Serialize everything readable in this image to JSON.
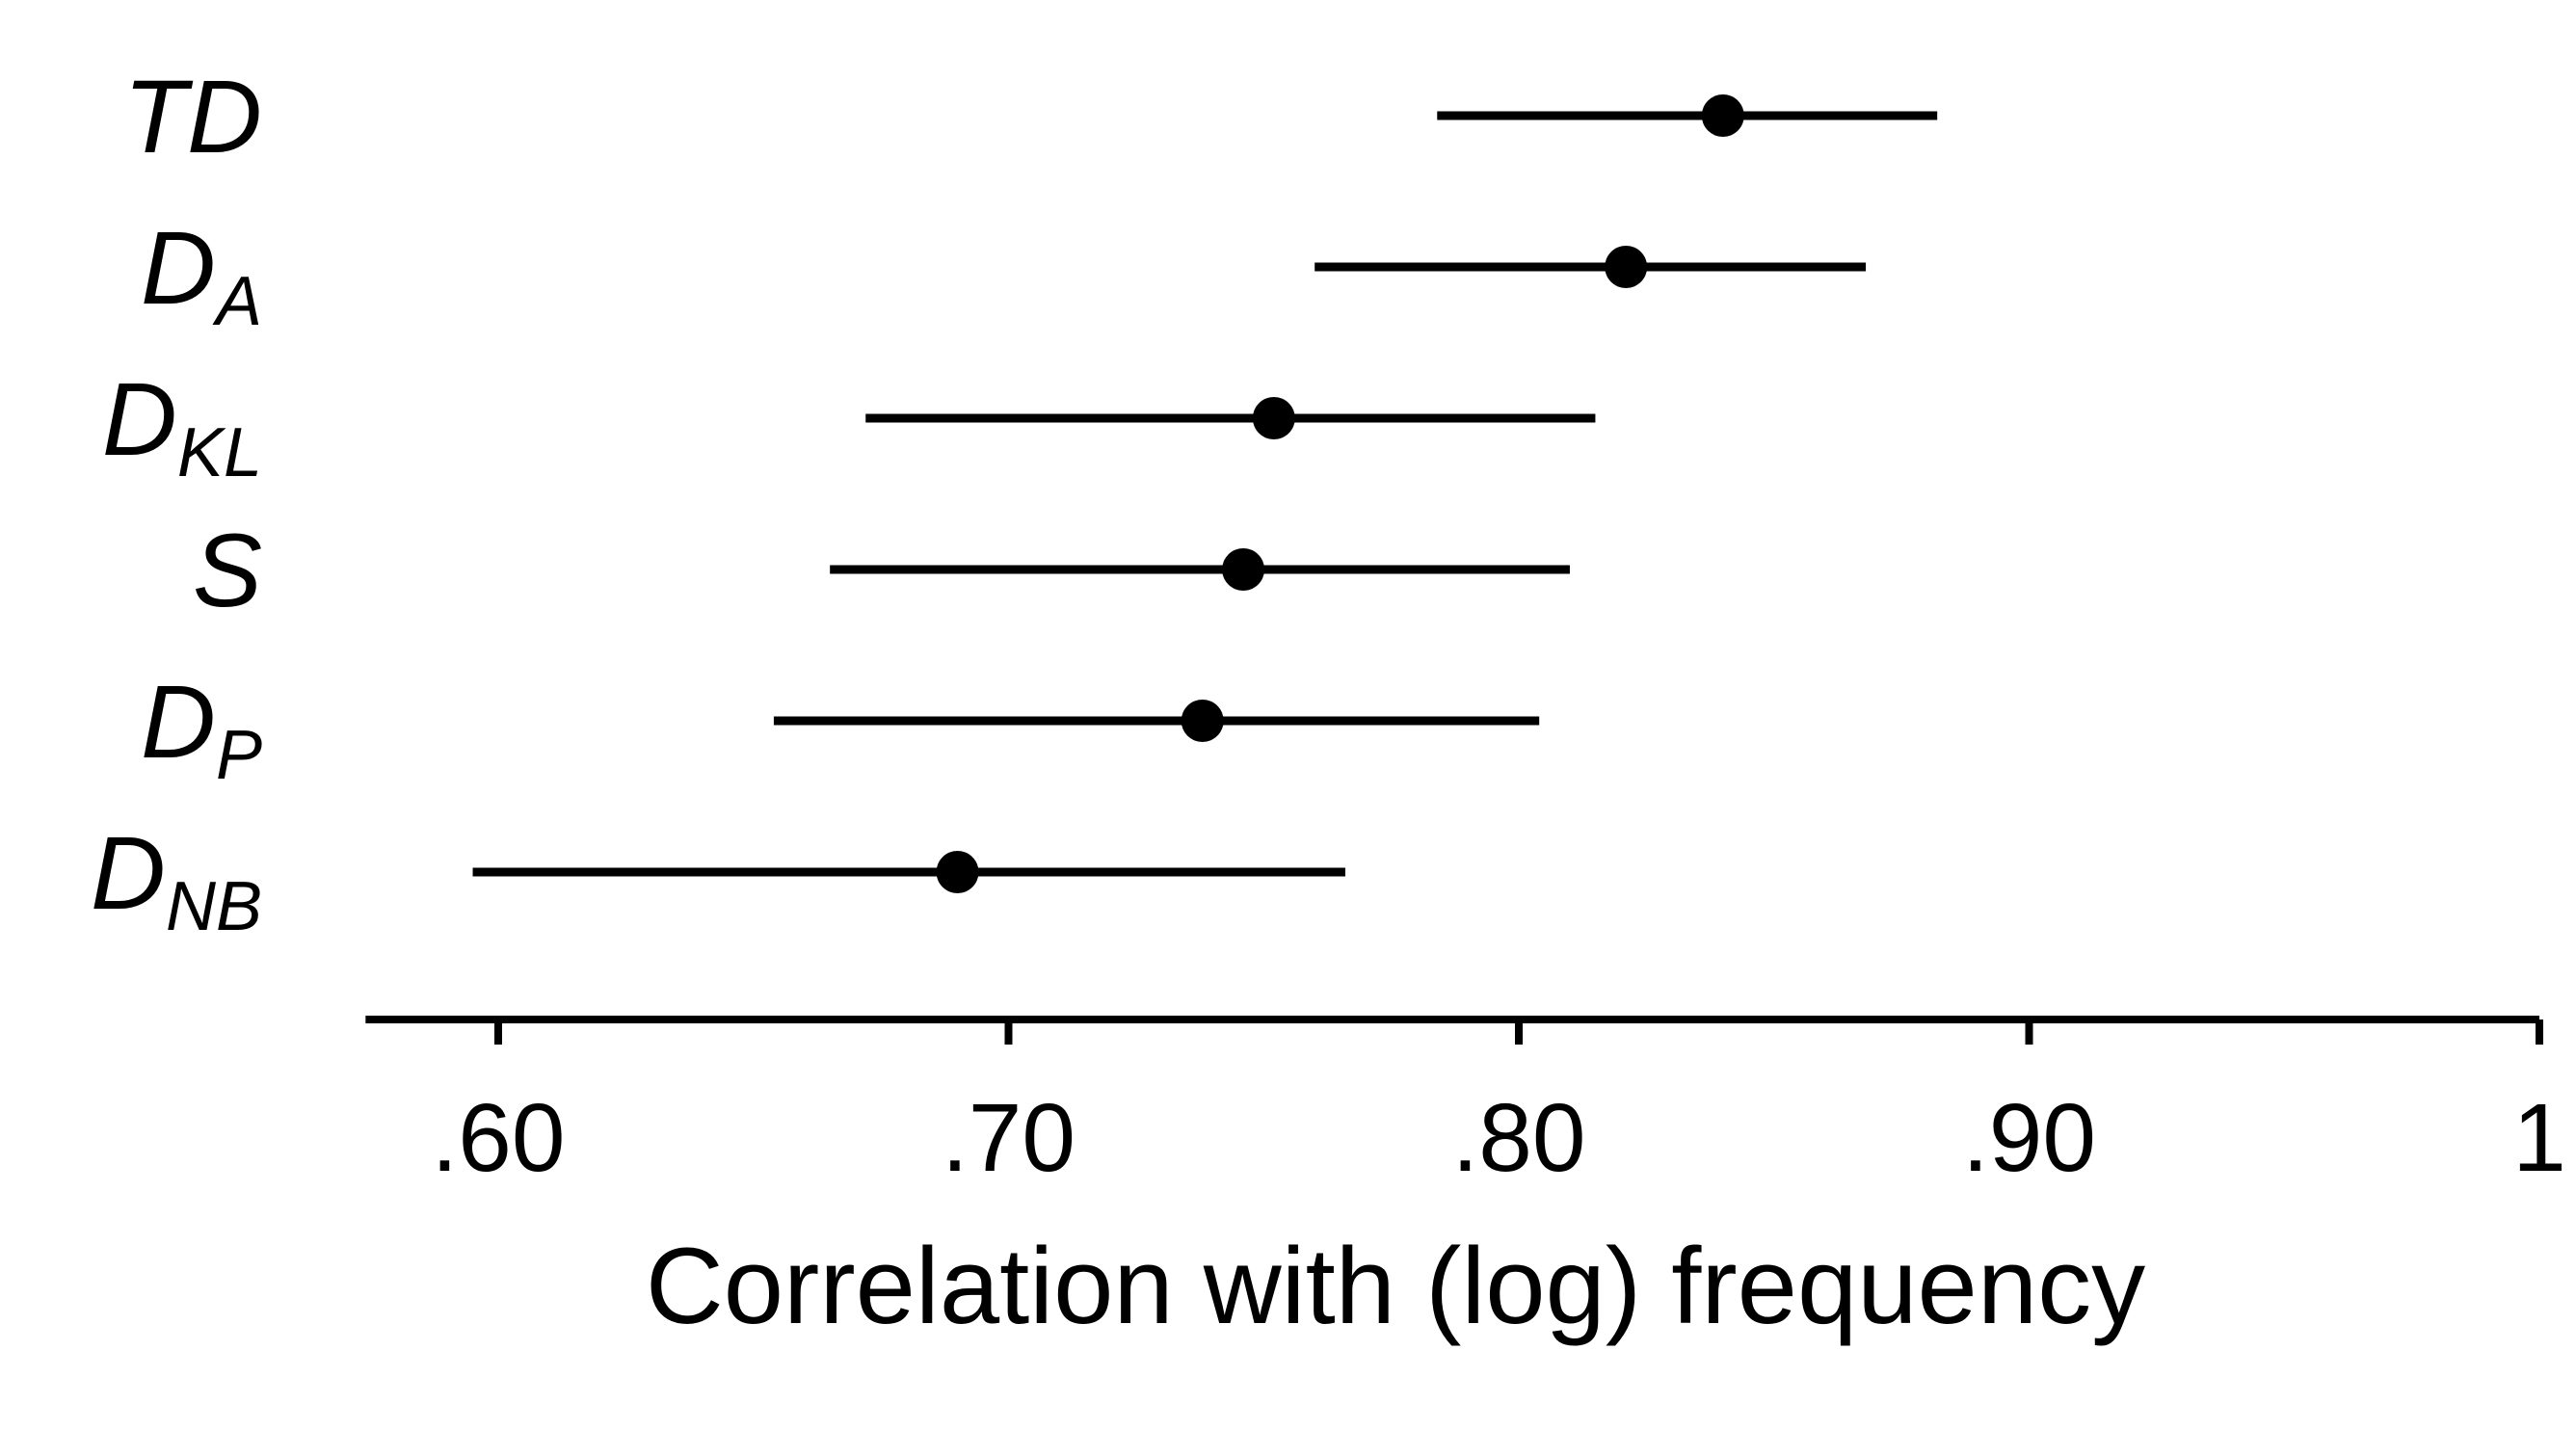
{
  "chart_data": {
    "type": "scatter",
    "subtype": "interval-plot",
    "title": "",
    "xlabel": "Correlation with (log) frequency",
    "ylabel": "",
    "xlim": [
      0.574,
      1.0
    ],
    "grid": false,
    "legend": "none",
    "x_ticks": [
      {
        "value": 0.6,
        "label": ".60"
      },
      {
        "value": 0.7,
        "label": ".70"
      },
      {
        "value": 0.8,
        "label": ".80"
      },
      {
        "value": 0.9,
        "label": ".90"
      },
      {
        "value": 1.0,
        "label": "1"
      }
    ],
    "series": [
      {
        "main": "TD",
        "sub": "",
        "estimate": 0.84,
        "lower": 0.784,
        "upper": 0.882
      },
      {
        "main": "D",
        "sub": "A",
        "estimate": 0.821,
        "lower": 0.76,
        "upper": 0.868
      },
      {
        "main": "D",
        "sub": "KL",
        "estimate": 0.752,
        "lower": 0.672,
        "upper": 0.815
      },
      {
        "main": "S",
        "sub": "",
        "estimate": 0.746,
        "lower": 0.665,
        "upper": 0.81
      },
      {
        "main": "D",
        "sub": "P",
        "estimate": 0.738,
        "lower": 0.654,
        "upper": 0.804
      },
      {
        "main": "D",
        "sub": "NB",
        "estimate": 0.69,
        "lower": 0.595,
        "upper": 0.766
      }
    ],
    "colors": {
      "marks": "#000000",
      "background": "#ffffff"
    }
  }
}
